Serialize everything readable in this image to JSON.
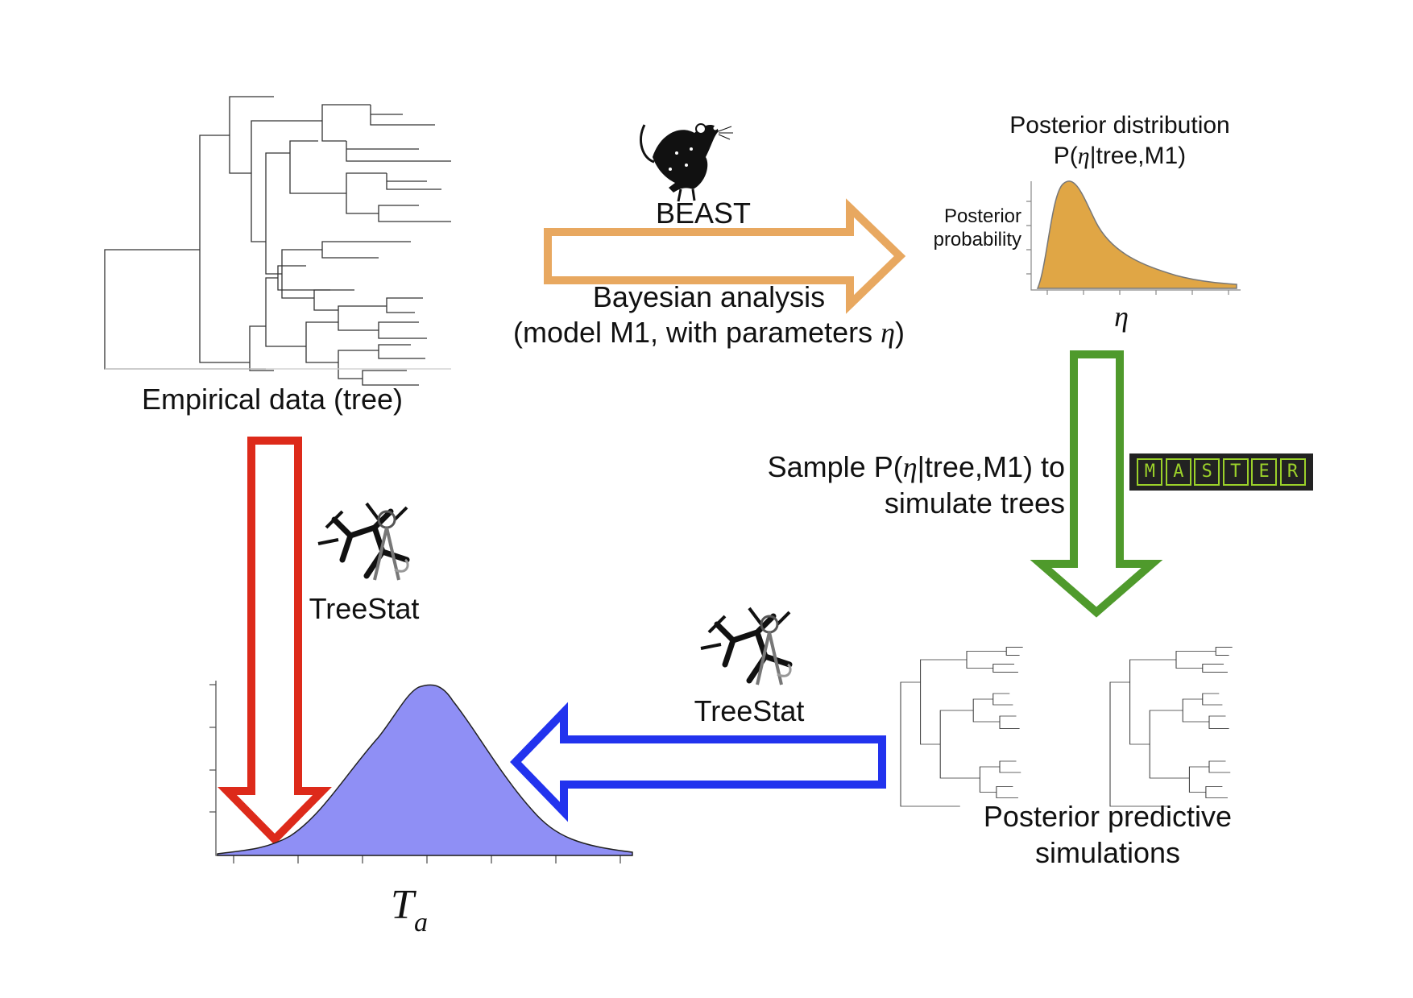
{
  "empirical_label": "Empirical data (tree)",
  "beast": {
    "name": "BEAST",
    "line1": "Bayesian analysis",
    "line2_a": "(model M1, with parameters ",
    "line2_eta": "η",
    "line2_b": ")"
  },
  "posterior": {
    "title": "Posterior distribution",
    "subtitle_a": "P(",
    "subtitle_eta": "η",
    "subtitle_b": "|tree,M1)",
    "ylabel_1": "Posterior",
    "ylabel_2": "probability",
    "xlabel": "η"
  },
  "sample": {
    "line1_a": "Sample P(",
    "line1_eta": "η",
    "line1_b": "|tree,M1) to",
    "line2": "simulate trees"
  },
  "master_letters": [
    "M",
    "A",
    "S",
    "T",
    "E",
    "R"
  ],
  "treestat_left": "TreeStat",
  "treestat_right": "TreeStat",
  "ppd_line1": "Posterior predictive",
  "ppd_line2": "simulations",
  "ta_main": "T",
  "ta_sub": "a",
  "colors": {
    "beast_arrow": "#e8a860",
    "master_arrow": "#4f9a2c",
    "treestat_arrow": "#2233ee",
    "empirical_arrow": "#dd2a1a",
    "posterior_fill": "#e0a645",
    "ta_fill": "#8f8ff5",
    "master_bg": "#222222",
    "master_green": "#9bd12a"
  },
  "icons": [
    "mouse-icon",
    "treestat-icon",
    "tree-icon"
  ]
}
